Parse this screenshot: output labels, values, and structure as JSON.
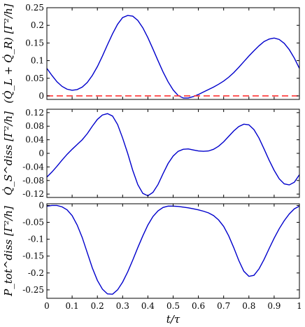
{
  "chart_data": [
    {
      "type": "line",
      "ylabel": "(Q̇_L + Q̇_R)  [Γ²/h]",
      "ylim": [
        -0.01,
        0.25
      ],
      "yticks": [
        0,
        0.05,
        0.1,
        0.15,
        0.2,
        0.25
      ],
      "ytick_labels": [
        "0",
        "0.05",
        "0.1",
        "0.15",
        "0.2",
        "0.25"
      ],
      "grid": false,
      "series": [
        {
          "color": "#0000cc",
          "style": "solid",
          "x": [
            0,
            0.02,
            0.04,
            0.06,
            0.08,
            0.1,
            0.12,
            0.14,
            0.16,
            0.18,
            0.2,
            0.22,
            0.24,
            0.26,
            0.28,
            0.3,
            0.32,
            0.34,
            0.36,
            0.38,
            0.4,
            0.42,
            0.44,
            0.46,
            0.48,
            0.5,
            0.52,
            0.54,
            0.56,
            0.58,
            0.6,
            0.62,
            0.64,
            0.66,
            0.68,
            0.7,
            0.72,
            0.74,
            0.76,
            0.78,
            0.8,
            0.82,
            0.84,
            0.86,
            0.88,
            0.9,
            0.92,
            0.94,
            0.96,
            0.98,
            1.0
          ],
          "y": [
            0.078,
            0.058,
            0.04,
            0.027,
            0.019,
            0.016,
            0.018,
            0.025,
            0.038,
            0.058,
            0.083,
            0.113,
            0.145,
            0.176,
            0.203,
            0.222,
            0.228,
            0.226,
            0.214,
            0.193,
            0.165,
            0.133,
            0.1,
            0.068,
            0.04,
            0.017,
            0.001,
            -0.006,
            -0.006,
            -0.002,
            0.004,
            0.011,
            0.018,
            0.025,
            0.033,
            0.042,
            0.053,
            0.066,
            0.081,
            0.097,
            0.113,
            0.128,
            0.142,
            0.154,
            0.161,
            0.164,
            0.16,
            0.149,
            0.131,
            0.107,
            0.078
          ]
        },
        {
          "color": "#ff3333",
          "style": "dashed",
          "x": [
            0,
            1
          ],
          "y": [
            0,
            0
          ]
        }
      ]
    },
    {
      "type": "line",
      "ylabel": "Q̇_S^diss  [Γ²/h]",
      "ylim": [
        -0.13,
        0.13
      ],
      "yticks": [
        -0.12,
        -0.08,
        -0.04,
        0,
        0.04,
        0.08,
        0.12
      ],
      "ytick_labels": [
        "-0.12",
        "-0.08",
        "-0.04",
        "0",
        "0.04",
        "0.08",
        "0.12"
      ],
      "grid": false,
      "series": [
        {
          "color": "#0000cc",
          "style": "solid",
          "x": [
            0,
            0.02,
            0.04,
            0.06,
            0.08,
            0.1,
            0.12,
            0.14,
            0.16,
            0.18,
            0.2,
            0.22,
            0.24,
            0.26,
            0.28,
            0.3,
            0.32,
            0.34,
            0.36,
            0.38,
            0.4,
            0.42,
            0.44,
            0.46,
            0.48,
            0.5,
            0.52,
            0.54,
            0.56,
            0.58,
            0.6,
            0.62,
            0.64,
            0.66,
            0.68,
            0.7,
            0.72,
            0.74,
            0.76,
            0.78,
            0.8,
            0.82,
            0.84,
            0.86,
            0.88,
            0.9,
            0.92,
            0.94,
            0.96,
            0.98,
            1.0
          ],
          "y": [
            -0.07,
            -0.055,
            -0.038,
            -0.02,
            -0.003,
            0.012,
            0.026,
            0.04,
            0.058,
            0.08,
            0.1,
            0.113,
            0.117,
            0.11,
            0.085,
            0.045,
            0.0,
            -0.05,
            -0.092,
            -0.118,
            -0.125,
            -0.115,
            -0.092,
            -0.06,
            -0.03,
            -0.008,
            0.006,
            0.012,
            0.013,
            0.01,
            0.007,
            0.006,
            0.007,
            0.012,
            0.021,
            0.034,
            0.05,
            0.066,
            0.079,
            0.086,
            0.084,
            0.07,
            0.045,
            0.013,
            -0.02,
            -0.05,
            -0.075,
            -0.09,
            -0.093,
            -0.085,
            -0.063
          ]
        }
      ]
    },
    {
      "type": "line",
      "ylabel": "P_tot^diss  [Γ²/h]",
      "xlabel": "t/τ",
      "ylim": [
        -0.275,
        0.005
      ],
      "xlim": [
        0,
        1
      ],
      "yticks": [
        -0.25,
        -0.2,
        -0.15,
        -0.1,
        -0.05,
        0
      ],
      "ytick_labels": [
        "-0.25",
        "-0.2",
        "-0.15",
        "-0.1",
        "-0.05",
        "0"
      ],
      "xticks": [
        0,
        0.1,
        0.2,
        0.3,
        0.4,
        0.5,
        0.6,
        0.7,
        0.8,
        0.9,
        1
      ],
      "xtick_labels": [
        "0",
        "0.1",
        "0.2",
        "0.3",
        "0.4",
        "0.5",
        "0.6",
        "0.7",
        "0.8",
        "0.9",
        "1"
      ],
      "grid": false,
      "series": [
        {
          "color": "#0000cc",
          "style": "solid",
          "x": [
            0,
            0.02,
            0.04,
            0.06,
            0.08,
            0.1,
            0.12,
            0.14,
            0.16,
            0.18,
            0.2,
            0.22,
            0.24,
            0.26,
            0.28,
            0.3,
            0.32,
            0.34,
            0.36,
            0.38,
            0.4,
            0.42,
            0.44,
            0.46,
            0.48,
            0.5,
            0.52,
            0.54,
            0.56,
            0.58,
            0.6,
            0.62,
            0.64,
            0.66,
            0.68,
            0.7,
            0.72,
            0.74,
            0.76,
            0.78,
            0.8,
            0.82,
            0.84,
            0.86,
            0.88,
            0.9,
            0.92,
            0.94,
            0.96,
            0.98,
            1.0
          ],
          "y": [
            -0.002,
            0.0,
            0.0,
            -0.004,
            -0.013,
            -0.03,
            -0.058,
            -0.095,
            -0.14,
            -0.185,
            -0.222,
            -0.248,
            -0.262,
            -0.263,
            -0.25,
            -0.227,
            -0.197,
            -0.162,
            -0.125,
            -0.09,
            -0.058,
            -0.033,
            -0.016,
            -0.006,
            -0.002,
            -0.002,
            -0.003,
            -0.005,
            -0.007,
            -0.01,
            -0.013,
            -0.017,
            -0.022,
            -0.03,
            -0.043,
            -0.062,
            -0.09,
            -0.125,
            -0.163,
            -0.195,
            -0.21,
            -0.207,
            -0.188,
            -0.16,
            -0.128,
            -0.097,
            -0.069,
            -0.045,
            -0.025,
            -0.01,
            -0.002
          ]
        }
      ]
    }
  ]
}
